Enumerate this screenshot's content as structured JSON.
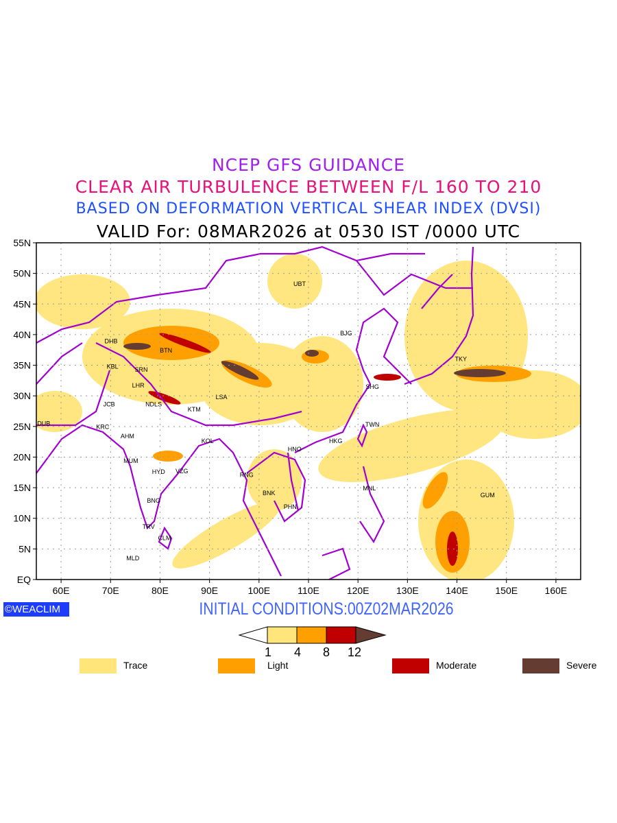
{
  "titles": {
    "line1": "NCEP GFS GUIDANCE",
    "line2": "CLEAR AIR TURBULENCE BETWEEN F/L 160 TO 210",
    "line3": "BASED ON DEFORMATION VERTICAL SHEAR INDEX (DVSI)",
    "line4": "VALID For: 08MAR2026 at 0530 IST /0000 UTC"
  },
  "logo": "©WEACLIM",
  "initial_conditions": "INITIAL CONDITIONS:00Z02MAR2026",
  "map": {
    "lon_range": [
      55,
      165
    ],
    "lat_range": [
      0,
      55
    ],
    "lon_ticks": [
      "60E",
      "70E",
      "80E",
      "90E",
      "100E",
      "110E",
      "120E",
      "130E",
      "140E",
      "150E",
      "160E"
    ],
    "lat_ticks": [
      "EQ",
      "5N",
      "10N",
      "15N",
      "20N",
      "25N",
      "30N",
      "35N",
      "40N",
      "45N",
      "50N",
      "55N"
    ],
    "boundary_color": "#a000d0",
    "cities": [
      {
        "name": "UBT",
        "lon": 108.2,
        "lat": 48.3
      },
      {
        "name": "BJG",
        "lon": 117.6,
        "lat": 40.2
      },
      {
        "name": "DHB",
        "lon": 70.1,
        "lat": 38.9
      },
      {
        "name": "BTN",
        "lon": 81.2,
        "lat": 37.4
      },
      {
        "name": "KBL",
        "lon": 70.4,
        "lat": 34.8
      },
      {
        "name": "SRN",
        "lon": 76.2,
        "lat": 34.3
      },
      {
        "name": "TKY",
        "lon": 140.8,
        "lat": 36.0
      },
      {
        "name": "LHR",
        "lon": 75.6,
        "lat": 31.7
      },
      {
        "name": "LSA",
        "lon": 92.4,
        "lat": 29.8
      },
      {
        "name": "SHG",
        "lon": 122.9,
        "lat": 31.5
      },
      {
        "name": "JCB",
        "lon": 69.7,
        "lat": 28.6
      },
      {
        "name": "NDLS",
        "lon": 78.7,
        "lat": 28.6
      },
      {
        "name": "KTM",
        "lon": 86.9,
        "lat": 27.8
      },
      {
        "name": "DUB",
        "lon": 56.5,
        "lat": 25.5
      },
      {
        "name": "TWN",
        "lon": 122.9,
        "lat": 25.3
      },
      {
        "name": "KRC",
        "lon": 68.4,
        "lat": 24.9
      },
      {
        "name": "AHM",
        "lon": 73.4,
        "lat": 23.4
      },
      {
        "name": "KOL",
        "lon": 89.6,
        "lat": 22.6
      },
      {
        "name": "HKG",
        "lon": 115.5,
        "lat": 22.6
      },
      {
        "name": "HNO",
        "lon": 107.2,
        "lat": 21.3
      },
      {
        "name": "MUM",
        "lon": 74.1,
        "lat": 19.4
      },
      {
        "name": "HYD",
        "lon": 79.7,
        "lat": 17.6
      },
      {
        "name": "VZG",
        "lon": 84.4,
        "lat": 17.7
      },
      {
        "name": "RNG",
        "lon": 97.5,
        "lat": 17.1
      },
      {
        "name": "MNL",
        "lon": 122.3,
        "lat": 14.9
      },
      {
        "name": "GUM",
        "lon": 146.2,
        "lat": 13.8
      },
      {
        "name": "BNK",
        "lon": 102.0,
        "lat": 14.1
      },
      {
        "name": "PHN",
        "lon": 106.3,
        "lat": 11.9
      },
      {
        "name": "BNG",
        "lon": 78.7,
        "lat": 12.9
      },
      {
        "name": "TRV",
        "lon": 77.7,
        "lat": 8.6
      },
      {
        "name": "CLM",
        "lon": 80.9,
        "lat": 6.8
      },
      {
        "name": "MLD",
        "lon": 74.5,
        "lat": 3.5
      }
    ]
  },
  "colorbar": {
    "levels": [
      "1",
      "4",
      "8",
      "12"
    ],
    "colors": [
      "#ffe57a",
      "#ffa000",
      "#c00000",
      "#643c32"
    ]
  },
  "legend": [
    {
      "label": "Trace",
      "color": "#ffe57a"
    },
    {
      "label": "Light",
      "color": "#ffa000"
    },
    {
      "label": "Moderate",
      "color": "#c00000"
    },
    {
      "label": "Severe",
      "color": "#643c32"
    }
  ]
}
